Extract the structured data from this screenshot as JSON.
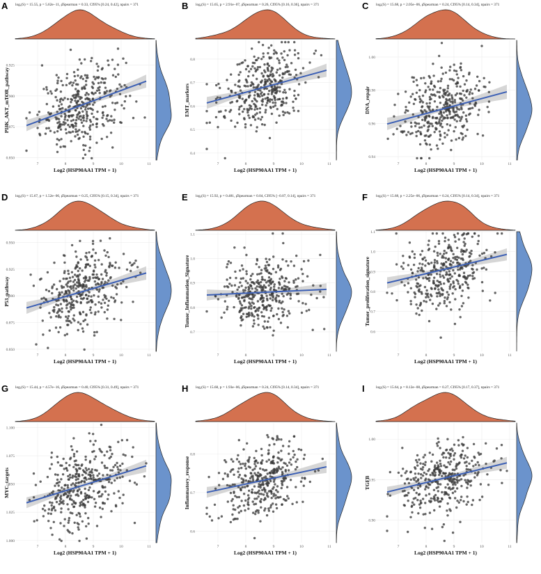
{
  "figure": {
    "x_axis_label": "Log2 (HSP90AA1 TPM + 1)",
    "x_ticks": [
      "7",
      "8",
      "9",
      "10",
      "11"
    ]
  },
  "colors": {
    "point": "#3a3a3a",
    "fit_line": "#3b5fb5",
    "ci_band": "#c8c8c8",
    "top_density": "#d4714f",
    "right_density": "#6b93cc",
    "grid": "#ececec"
  },
  "chart_data": [
    {
      "type": "scatter",
      "panel_label": "A",
      "ylabel": "PI3K_AKT_mTOR_pathway",
      "stats": "logₑ(S) = 15.55, p = 5.62e−11, ρ̂Spearman = 0.33, CI95% [0.24, 0.42], npairs = 371",
      "xlim": [
        6.2,
        11.2
      ],
      "ylim": [
        0.848,
        0.945
      ],
      "y_ticks": [
        "0.850",
        "0.875",
        "0.900",
        "0.925"
      ],
      "y_tick_values": [
        0.85,
        0.875,
        0.9,
        0.925
      ],
      "fit": {
        "intercept": 0.8207,
        "slope": 0.00837
      },
      "y_mean": 0.894,
      "y_sd": 0.017,
      "rho": 0.33,
      "n_pairs": 371
    },
    {
      "type": "scatter",
      "panel_label": "B",
      "ylabel": "EMT_markers",
      "stats": "logₑ(S) = 15.65, p = 2.91e−07, ρ̂Spearman = 0.26, CI95% [0.16, 0.36], npairs = 371",
      "xlim": [
        6.2,
        11.2
      ],
      "ylim": [
        0.37,
        0.88
      ],
      "y_ticks": [
        "0.4",
        "0.5",
        "0.6",
        "0.7",
        "0.8"
      ],
      "y_tick_values": [
        0.4,
        0.5,
        0.6,
        0.7,
        0.8
      ],
      "fit": {
        "intercept": 0.3995,
        "slope": 0.0324
      },
      "y_mean": 0.68,
      "y_sd": 0.09,
      "rho": 0.26,
      "n_pairs": 371
    },
    {
      "type": "scatter",
      "panel_label": "C",
      "ylabel": "DNA_repair",
      "stats": "logₑ(S) = 15.68, p = 2.05e−06, ρ̂Spearman = 0.24, CI95% [0.14, 0.34], npairs = 371",
      "xlim": [
        6.2,
        11.2
      ],
      "ylim": [
        0.938,
        1.01
      ],
      "y_ticks": [
        "0.94",
        "0.96",
        "0.98",
        "1.00"
      ],
      "y_tick_values": [
        0.94,
        0.96,
        0.98,
        1.0
      ],
      "fit": {
        "intercept": 0.93,
        "slope": 0.0045
      },
      "y_mean": 0.968,
      "y_sd": 0.013,
      "rho": 0.24,
      "n_pairs": 371
    },
    {
      "type": "scatter",
      "panel_label": "D",
      "ylabel": "P53_pathway",
      "stats": "logₑ(S) = 15.67, p = 1.52e−06, ρ̂Spearman = 0.25, CI95% [0.15, 0.34], npairs = 371",
      "xlim": [
        6.2,
        11.2
      ],
      "ylim": [
        0.848,
        0.96
      ],
      "y_ticks": [
        "0.850",
        "0.875",
        "0.900",
        "0.925",
        "0.950"
      ],
      "y_tick_values": [
        0.85,
        0.875,
        0.9,
        0.925,
        0.95
      ],
      "fit": {
        "intercept": 0.8385,
        "slope": 0.0076
      },
      "y_mean": 0.904,
      "y_sd": 0.02,
      "rho": 0.25,
      "n_pairs": 371
    },
    {
      "type": "scatter",
      "panel_label": "E",
      "ylabel": "Tumor_Inflammation_Signature",
      "stats": "logₑ(S) = 15.92, p = 0.481, ρ̂Spearman = 0.04, CI95% [−0.07, 0.14], npairs = 371",
      "xlim": [
        6.2,
        11.2
      ],
      "ylim": [
        0.62,
        1.11
      ],
      "y_ticks": [
        "0.7",
        "0.8",
        "0.9",
        "1.0",
        "1.1"
      ],
      "y_tick_values": [
        0.7,
        0.8,
        0.9,
        1.0,
        1.1
      ],
      "fit": {
        "intercept": 0.8152,
        "slope": 0.0054
      },
      "y_mean": 0.86,
      "y_sd": 0.08,
      "rho": 0.04,
      "n_pairs": 371
    },
    {
      "type": "scatter",
      "panel_label": "F",
      "ylabel": "Tumor_proliferation_signature",
      "stats": "logₑ(S) = 15.68, p = 2.25e−06, ρ̂Spearman = 0.24, CI95% [0.14, 0.34], npairs = 371",
      "xlim": [
        6.2,
        11.2
      ],
      "ylim": [
        0.5,
        1.1
      ],
      "y_ticks": [
        "0.6",
        "0.7",
        "0.8",
        "0.9",
        "1.0",
        "1.1"
      ],
      "y_tick_values": [
        0.6,
        0.7,
        0.8,
        0.9,
        1.0,
        1.1
      ],
      "fit": {
        "intercept": 0.6233,
        "slope": 0.0333
      },
      "y_mean": 0.9,
      "y_sd": 0.1,
      "rho": 0.24,
      "n_pairs": 371
    },
    {
      "type": "scatter",
      "panel_label": "G",
      "ylabel": "MYC_targets",
      "stats": "logₑ(S) = 15.44, p = 4.57e−16, ρ̂Spearman = 0.40, CI95% [0.31, 0.49], npairs = 371",
      "xlim": [
        6.2,
        11.2
      ],
      "ylim": [
        0.998,
        1.104
      ],
      "y_ticks": [
        "1.000",
        "1.025",
        "1.050",
        "1.075",
        "1.100"
      ],
      "y_tick_values": [
        1.0,
        1.025,
        1.05,
        1.075,
        1.1
      ],
      "fit": {
        "intercept": 0.9832,
        "slope": 0.0076
      },
      "y_mean": 1.047,
      "y_sd": 0.018,
      "rho": 0.4,
      "n_pairs": 371
    },
    {
      "type": "scatter",
      "panel_label": "H",
      "ylabel": "Inflammatory_response",
      "stats": "logₑ(S) = 15.68, p = 1.93e−06, ρ̂Spearman = 0.24, CI95% [0.14, 0.34], npairs = 371",
      "xlim": [
        6.2,
        11.2
      ],
      "ylim": [
        0.57,
        0.88
      ],
      "y_ticks": [
        "0.6",
        "0.7",
        "0.8"
      ],
      "y_tick_values": [
        0.6,
        0.7,
        0.8
      ],
      "fit": {
        "intercept": 0.5987,
        "slope": 0.0154
      },
      "y_mean": 0.73,
      "y_sd": 0.05,
      "rho": 0.24,
      "n_pairs": 371
    },
    {
      "type": "scatter",
      "panel_label": "I",
      "ylabel": "TGFB",
      "stats": "logₑ(S) = 15.64, p = 8.12e−08, ρ̂Spearman = 0.27, CI95% [0.17, 0.37], npairs = 371",
      "xlim": [
        6.2,
        11.2
      ],
      "ylim": [
        0.872,
        1.02
      ],
      "y_ticks": [
        "0.90",
        "0.95",
        "1.00"
      ],
      "y_tick_values": [
        0.9,
        0.95,
        1.0
      ],
      "fit": {
        "intercept": 0.8792,
        "slope": 0.0084
      },
      "y_mean": 0.95,
      "y_sd": 0.025,
      "rho": 0.27,
      "n_pairs": 371
    }
  ]
}
